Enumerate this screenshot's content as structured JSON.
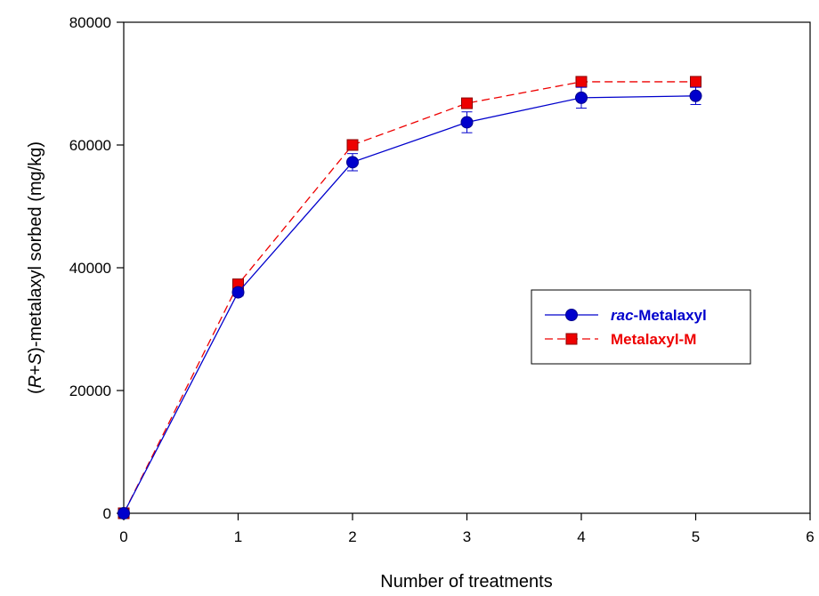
{
  "chart_data": {
    "type": "line",
    "xlabel": "Number of treatments",
    "ylabel": {
      "open": "(",
      "r": "R",
      "plus": "+",
      "s": "S",
      "rest": ")-metalaxyl sorbed (mg/kg)"
    },
    "xlim": [
      0,
      6
    ],
    "ylim": [
      0,
      80000
    ],
    "xticks": [
      "0",
      "1",
      "2",
      "3",
      "4",
      "5",
      "6"
    ],
    "yticks": [
      "0",
      "20000",
      "40000",
      "60000",
      "80000"
    ],
    "legend_position": "center-right",
    "series": [
      {
        "key": "rac",
        "legend_prefix": "rac",
        "legend_rest": "-Metalaxyl",
        "color": "#0000cc",
        "marker": "circle",
        "line_style": "solid",
        "x": [
          0,
          1,
          2,
          3,
          4,
          5
        ],
        "y": [
          0,
          36000,
          57200,
          63700,
          67700,
          68000
        ],
        "error": [
          0,
          600,
          1400,
          1700,
          1700,
          1400
        ]
      },
      {
        "key": "m",
        "legend_prefix": "",
        "legend_rest": "Metalaxyl-M",
        "color": "#ee0000",
        "marker": "square",
        "line_style": "dashed",
        "x": [
          0,
          1,
          2,
          3,
          4,
          5
        ],
        "y": [
          0,
          37300,
          60000,
          66800,
          70300,
          70300
        ],
        "error": [
          0,
          0,
          0,
          0,
          0,
          0
        ]
      }
    ]
  }
}
